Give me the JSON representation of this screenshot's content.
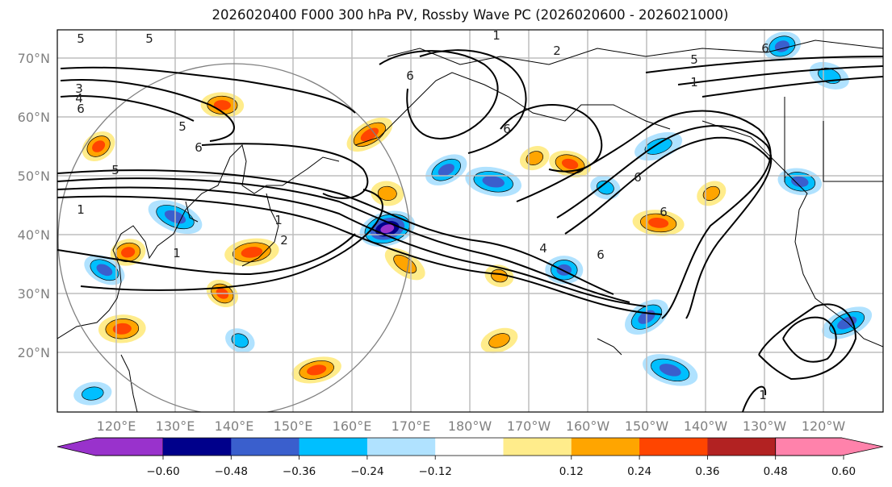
{
  "title": "2026020400 F000 300 hPa PV, Rossby Wave PC (2026020600 - 2026021000)",
  "map": {
    "projection": "cylindrical",
    "lon_range": [
      "110°E",
      "120°W"
    ],
    "lat_range": [
      "10°N",
      "75°N"
    ],
    "lat_ticks": [
      "70°N",
      "60°N",
      "50°N",
      "40°N",
      "30°N",
      "20°N"
    ],
    "lon_ticks": [
      "120°E",
      "130°E",
      "140°E",
      "150°E",
      "160°E",
      "170°E",
      "180°W",
      "170°W",
      "160°W",
      "150°W",
      "140°W",
      "130°W",
      "120°W"
    ],
    "contour_field": "300 hPa PV",
    "contour_labels": [
      {
        "text": "5",
        "where": "top-left"
      },
      {
        "text": "5",
        "where": "NW Asia"
      },
      {
        "text": "3",
        "where": "left edge 65N"
      },
      {
        "text": "4",
        "where": "left edge 63N"
      },
      {
        "text": "6",
        "where": "left edge 61N"
      },
      {
        "text": "5",
        "where": "Okhotsk west"
      },
      {
        "text": "6",
        "where": "Okhotsk"
      },
      {
        "text": "5",
        "where": "left 50N"
      },
      {
        "text": "1",
        "where": "left 45N"
      },
      {
        "text": "1",
        "where": "Japan Sea"
      },
      {
        "text": "2",
        "where": "off Japan"
      },
      {
        "text": "1",
        "where": "Korea"
      },
      {
        "text": "6",
        "where": "Kamchatka"
      },
      {
        "text": "6",
        "where": "Bering"
      },
      {
        "text": "2",
        "where": "Arctic coast"
      },
      {
        "text": "1",
        "where": "Arctic top"
      },
      {
        "text": "5",
        "where": "Arctic Canada"
      },
      {
        "text": "1",
        "where": "Arctic Canada south"
      },
      {
        "text": "6",
        "where": "NE Canada"
      },
      {
        "text": "6",
        "where": "Gulf of Alaska"
      },
      {
        "text": "6",
        "where": "Aleutian south"
      },
      {
        "text": "4",
        "where": "central Pacific"
      },
      {
        "text": "6",
        "where": "NE Pacific"
      },
      {
        "text": "1",
        "where": "subtropics east"
      }
    ],
    "shading_field": "Rossby Wave PC",
    "circle_annotation": true
  },
  "colorbar": {
    "levels": [
      "−0.60",
      "−0.48",
      "−0.36",
      "−0.24",
      "−0.12",
      "0.12",
      "0.24",
      "0.36",
      "0.48",
      "0.60"
    ],
    "colors": [
      "#9932cc",
      "#00008b",
      "#3a5fcd",
      "#00bfff",
      "#b0e2ff",
      "#ffffff",
      "#ffec8b",
      "#ffa500",
      "#ff4500",
      "#b22222",
      "#ff82ab"
    ],
    "extend": "both"
  },
  "chart_data": {
    "type": "heatmap",
    "title": "2026020400 F000 300 hPa PV, Rossby Wave PC (2026020600 - 2026021000)",
    "xlabel": "",
    "ylabel": "",
    "x_ticks": [
      "120°E",
      "130°E",
      "140°E",
      "150°E",
      "160°E",
      "170°E",
      "180°W",
      "170°W",
      "160°W",
      "150°W",
      "140°W",
      "130°W",
      "120°W"
    ],
    "y_ticks": [
      "70°N",
      "60°N",
      "50°N",
      "40°N",
      "30°N",
      "20°N"
    ],
    "colorbar_levels": [
      -0.6,
      -0.48,
      -0.36,
      -0.24,
      -0.12,
      0.12,
      0.24,
      0.36,
      0.48,
      0.6
    ],
    "grid": true,
    "blobs": [
      {
        "lon": 117,
        "lat": 55,
        "value": 0.4
      },
      {
        "lon": 138,
        "lat": 62,
        "value": 0.38
      },
      {
        "lon": 163,
        "lat": 57,
        "value": 0.37
      },
      {
        "lon": 166,
        "lat": 47,
        "value": 0.35
      },
      {
        "lon": 176,
        "lat": 51,
        "value": -0.4
      },
      {
        "lon": 184,
        "lat": 49,
        "value": -0.45
      },
      {
        "lon": 191,
        "lat": 53,
        "value": 0.3
      },
      {
        "lon": 197,
        "lat": 52,
        "value": 0.37
      },
      {
        "lon": 212,
        "lat": 55,
        "value": -0.35
      },
      {
        "lon": 203,
        "lat": 48,
        "value": -0.3
      },
      {
        "lon": 166,
        "lat": 41,
        "value": -0.6
      },
      {
        "lon": 130,
        "lat": 43,
        "value": -0.45
      },
      {
        "lon": 122,
        "lat": 37,
        "value": 0.4
      },
      {
        "lon": 118,
        "lat": 34,
        "value": -0.38
      },
      {
        "lon": 143,
        "lat": 37,
        "value": 0.42
      },
      {
        "lon": 138,
        "lat": 30,
        "value": 0.36
      },
      {
        "lon": 121,
        "lat": 24,
        "value": 0.45
      },
      {
        "lon": 169,
        "lat": 35,
        "value": 0.3
      },
      {
        "lon": 196,
        "lat": 34,
        "value": -0.45
      },
      {
        "lon": 210,
        "lat": 26,
        "value": -0.46
      },
      {
        "lon": 212,
        "lat": 42,
        "value": 0.38
      },
      {
        "lon": 221,
        "lat": 47,
        "value": 0.3
      },
      {
        "lon": 236,
        "lat": 49,
        "value": -0.4
      },
      {
        "lon": 244,
        "lat": 25,
        "value": -0.4
      },
      {
        "lon": 185,
        "lat": 33,
        "value": 0.27
      },
      {
        "lon": 185,
        "lat": 22,
        "value": 0.3
      },
      {
        "lon": 214,
        "lat": 17,
        "value": -0.45
      },
      {
        "lon": 233,
        "lat": 72,
        "value": -0.45
      },
      {
        "lon": 241,
        "lat": 67,
        "value": -0.35
      },
      {
        "lon": 154,
        "lat": 17,
        "value": 0.36
      },
      {
        "lon": 141,
        "lat": 22,
        "value": -0.3
      },
      {
        "lon": 116,
        "lat": 13,
        "value": -0.3
      }
    ]
  }
}
